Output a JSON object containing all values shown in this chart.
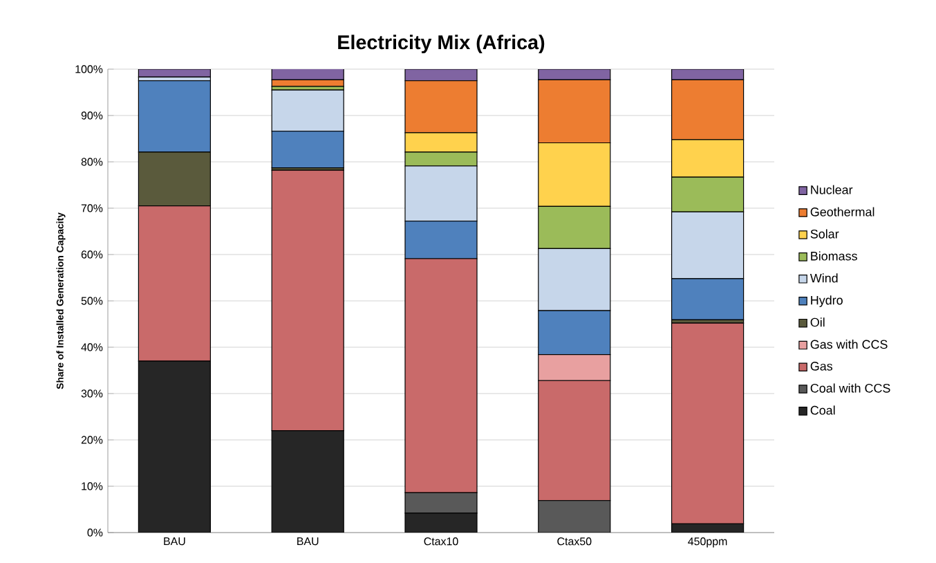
{
  "chart_data": {
    "type": "bar",
    "stacked": true,
    "title": "Electricity Mix (Africa)",
    "ylabel": "Share of Installed Generation Capacity",
    "categories": [
      "BAU",
      "BAU",
      "Ctax10",
      "Ctax50",
      "450ppm"
    ],
    "ylim": [
      0,
      100
    ],
    "yticks": [
      {
        "value": 0,
        "label": "0%"
      },
      {
        "value": 10,
        "label": "10%"
      },
      {
        "value": 20,
        "label": "20%"
      },
      {
        "value": 30,
        "label": "30%"
      },
      {
        "value": 40,
        "label": "40%"
      },
      {
        "value": 50,
        "label": "50%"
      },
      {
        "value": 60,
        "label": "60%"
      },
      {
        "value": 70,
        "label": "70%"
      },
      {
        "value": 80,
        "label": "80%"
      },
      {
        "value": 90,
        "label": "90%"
      },
      {
        "value": 100,
        "label": "100%"
      }
    ],
    "grid": "y",
    "legend": "right",
    "series": [
      {
        "name": "Coal",
        "color": "#262626",
        "values": [
          37,
          22,
          4.2,
          0,
          1.9
        ]
      },
      {
        "name": "Coal with CCS",
        "color": "#595959",
        "values": [
          0,
          0,
          4.4,
          6.9,
          0
        ]
      },
      {
        "name": "Gas",
        "color": "#c96a6a",
        "values": [
          33.5,
          56.2,
          50.5,
          25.9,
          43.3
        ]
      },
      {
        "name": "Gas with CCS",
        "color": "#e8a0a0",
        "values": [
          0,
          0,
          0,
          5.6,
          0
        ]
      },
      {
        "name": "Oil",
        "color": "#5a5a3c",
        "values": [
          11.6,
          0.5,
          0,
          0,
          0.7
        ]
      },
      {
        "name": "Hydro",
        "color": "#4f81bd",
        "values": [
          15.4,
          7.9,
          8.1,
          9.5,
          8.9
        ]
      },
      {
        "name": "Wind",
        "color": "#c6d6ea",
        "values": [
          0.8,
          8.9,
          11.9,
          13.4,
          14.4
        ]
      },
      {
        "name": "Biomass",
        "color": "#9bbb59",
        "values": [
          0,
          0.8,
          3.0,
          9.1,
          7.5
        ]
      },
      {
        "name": "Solar",
        "color": "#ffd24d",
        "values": [
          0,
          0,
          4.2,
          13.7,
          8.1
        ]
      },
      {
        "name": "Geothermal",
        "color": "#ed7d31",
        "values": [
          0,
          1.4,
          11.2,
          13.6,
          12.9
        ]
      },
      {
        "name": "Nuclear",
        "color": "#8064a2",
        "values": [
          1.7,
          2.5,
          2.5,
          2.3,
          2.3
        ]
      }
    ]
  }
}
